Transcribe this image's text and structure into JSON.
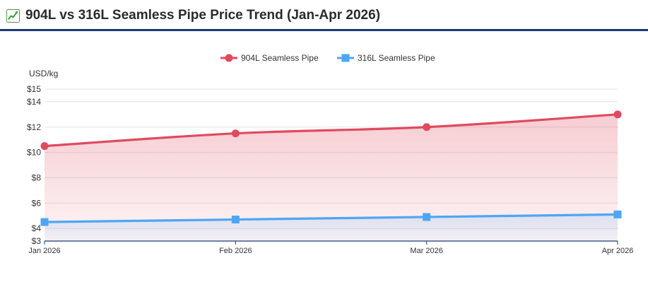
{
  "header": {
    "icon": "chart-increasing-icon",
    "title": "904L vs 316L Seamless Pipe Price Trend (Jan-Apr 2026)"
  },
  "chart_data": {
    "type": "line",
    "categories": [
      "Jan 2026",
      "Feb 2026",
      "Mar 2026",
      "Apr 2026"
    ],
    "series": [
      {
        "name": "904L Seamless Pipe",
        "values": [
          10.5,
          11.5,
          12.0,
          13.0
        ],
        "color": "#e04a5f",
        "marker": "circle",
        "fill": "area"
      },
      {
        "name": "316L Seamless Pipe",
        "values": [
          4.5,
          4.7,
          4.9,
          5.1
        ],
        "color": "#4da6f5",
        "marker": "square",
        "fill": "area"
      }
    ],
    "yticks": [
      "$3",
      "$4",
      "$6",
      "$8",
      "$10",
      "$12",
      "$14",
      "$15"
    ],
    "ytick_values": [
      3,
      4,
      6,
      8,
      10,
      12,
      14,
      15
    ],
    "ylim": [
      3,
      15
    ],
    "ylabel": "USD/kg",
    "xlabel": "",
    "grid": true,
    "legend": "top-center",
    "smooth": true
  }
}
